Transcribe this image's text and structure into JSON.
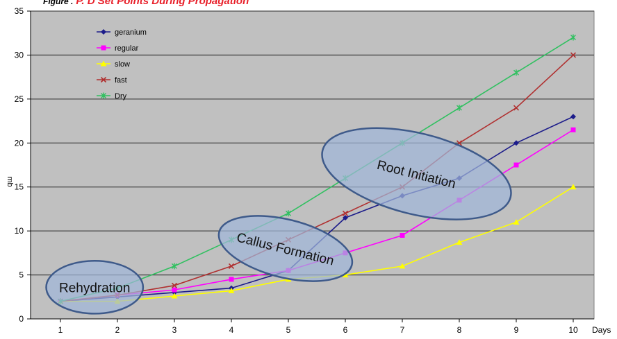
{
  "colors": {
    "plot_background": "#c0c0c0",
    "gridline": "#4a4a4a",
    "ellipse_fill": "#9fb6d8",
    "ellipse_stroke": "#3e5a8a",
    "title_accent": "#e8202a"
  },
  "title": {
    "prefix": "Figure .",
    "main": "P. D Set Points During Propagation"
  },
  "chart_data": {
    "type": "line",
    "xlabel": "Days",
    "ylabel": "mb",
    "x": [
      1,
      2,
      3,
      4,
      5,
      6,
      7,
      8,
      9,
      10
    ],
    "xlim": [
      1,
      10
    ],
    "ylim": [
      0,
      35
    ],
    "yticks": [
      0,
      5,
      10,
      15,
      20,
      25,
      30,
      35
    ],
    "grid": "horizontal",
    "legend_position": "top-left",
    "series": [
      {
        "name": "geranium",
        "color": "#1c1c8a",
        "marker": "diamond",
        "values": [
          2,
          2.5,
          3,
          3.5,
          5.5,
          11.5,
          14,
          16,
          20,
          23
        ]
      },
      {
        "name": "regular",
        "color": "#ff00ff",
        "marker": "square",
        "values": [
          2,
          2.7,
          3.3,
          4.5,
          5.5,
          7.5,
          9.5,
          13.5,
          17.5,
          21.5
        ]
      },
      {
        "name": "slow",
        "color": "#ffff00",
        "marker": "triangle",
        "values": [
          2,
          2,
          2.6,
          3.2,
          4.5,
          5,
          6,
          8.7,
          11,
          15
        ]
      },
      {
        "name": "fast",
        "color": "#b03030",
        "marker": "x",
        "values": [
          2,
          2.7,
          3.8,
          6,
          9,
          12,
          15,
          20,
          24,
          30
        ]
      },
      {
        "name": "Dry",
        "color": "#30c060",
        "marker": "star",
        "values": [
          2,
          3.5,
          6,
          9,
          12,
          16,
          20,
          24,
          28,
          32
        ]
      }
    ],
    "annotations": [
      {
        "label": "Rehydration",
        "x": 1.6,
        "y": 3.6,
        "rx_days": 0.85,
        "ry_mb": 3.0,
        "angle": 0
      },
      {
        "label": "Callus Formation",
        "x": 4.95,
        "y": 8.0,
        "rx_days": 1.2,
        "ry_mb": 3.3,
        "angle": 14
      },
      {
        "label": "Root Initiation",
        "x": 7.25,
        "y": 16.5,
        "rx_days": 1.7,
        "ry_mb": 4.6,
        "angle": 14
      }
    ]
  }
}
